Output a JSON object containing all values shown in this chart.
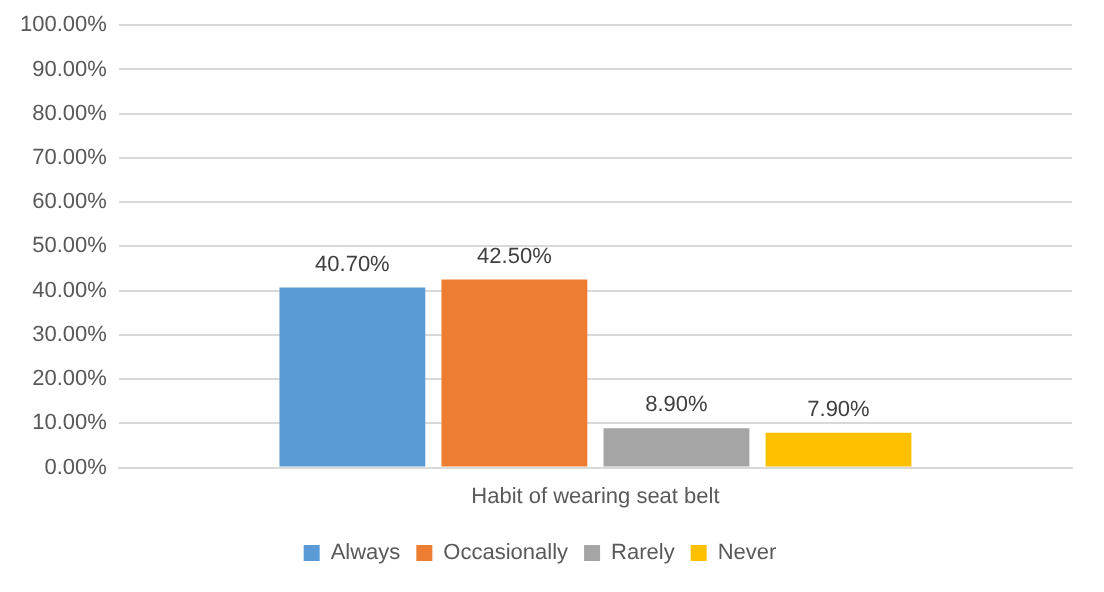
{
  "chart_data": {
    "type": "bar",
    "categories": [
      "Habit of wearing seat belt"
    ],
    "series": [
      {
        "name": "Always",
        "color": "#5b9bd5",
        "values": [
          40.7
        ],
        "value_labels": [
          "40.70%"
        ]
      },
      {
        "name": "Occasionally",
        "color": "#ed7d31",
        "values": [
          42.5
        ],
        "value_labels": [
          "42.50%"
        ]
      },
      {
        "name": "Rarely",
        "color": "#a5a5a5",
        "values": [
          8.9
        ],
        "value_labels": [
          "8.90%"
        ]
      },
      {
        "name": "Never",
        "color": "#ffc000",
        "values": [
          7.9
        ],
        "value_labels": [
          "7.90%"
        ]
      }
    ],
    "ylim": [
      0,
      100
    ],
    "yticks": [
      {
        "value": 0,
        "label": "0.00%"
      },
      {
        "value": 10,
        "label": "10.00%"
      },
      {
        "value": 20,
        "label": "20.00%"
      },
      {
        "value": 30,
        "label": "30.00%"
      },
      {
        "value": 40,
        "label": "40.00%"
      },
      {
        "value": 50,
        "label": "50.00%"
      },
      {
        "value": 60,
        "label": "60.00%"
      },
      {
        "value": 70,
        "label": "70.00%"
      },
      {
        "value": 80,
        "label": "80.00%"
      },
      {
        "value": 90,
        "label": "90.00%"
      },
      {
        "value": 100,
        "label": "100.00%"
      }
    ],
    "grid": "y",
    "legend": "bottom"
  }
}
